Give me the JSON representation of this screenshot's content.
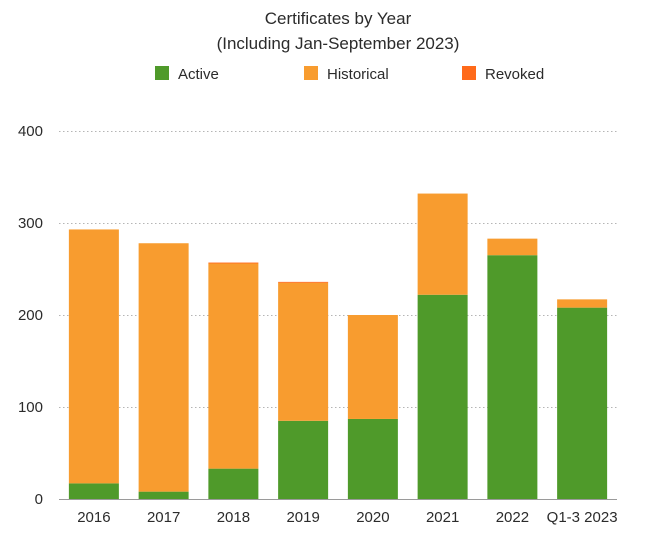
{
  "chart_data": {
    "type": "bar",
    "stacked": true,
    "title": "Certificates by Year",
    "subtitle": "(Including Jan-September 2023)",
    "xlabel": "",
    "ylabel": "",
    "ylim": [
      0,
      400
    ],
    "yticks": [
      0,
      100,
      200,
      300,
      400
    ],
    "grid": true,
    "legend_position": "top",
    "categories": [
      "2016",
      "2017",
      "2018",
      "2019",
      "2020",
      "2021",
      "2022",
      "Q1-3 2023"
    ],
    "series": [
      {
        "name": "Active",
        "color": "#4f9a2a",
        "values": [
          17,
          8,
          33,
          85,
          87,
          222,
          265,
          208
        ]
      },
      {
        "name": "Historical",
        "color": "#f89c2f",
        "values": [
          276,
          270,
          223,
          150,
          113,
          110,
          18,
          9
        ]
      },
      {
        "name": "Revoked",
        "color": "#ff6a1a",
        "values": [
          0,
          0,
          1,
          1,
          0,
          0,
          0,
          0
        ]
      }
    ]
  }
}
